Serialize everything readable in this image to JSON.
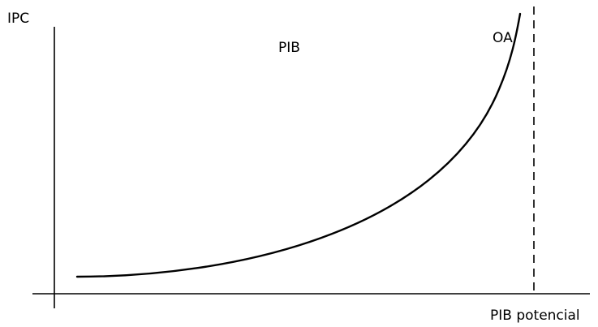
{
  "diagram": {
    "y_axis_label": "IPC",
    "x_axis_label": "PIB potencial",
    "center_label": "PIB",
    "curve_label": "OA"
  },
  "colors": {
    "line": "#000000",
    "background": "#ffffff"
  }
}
